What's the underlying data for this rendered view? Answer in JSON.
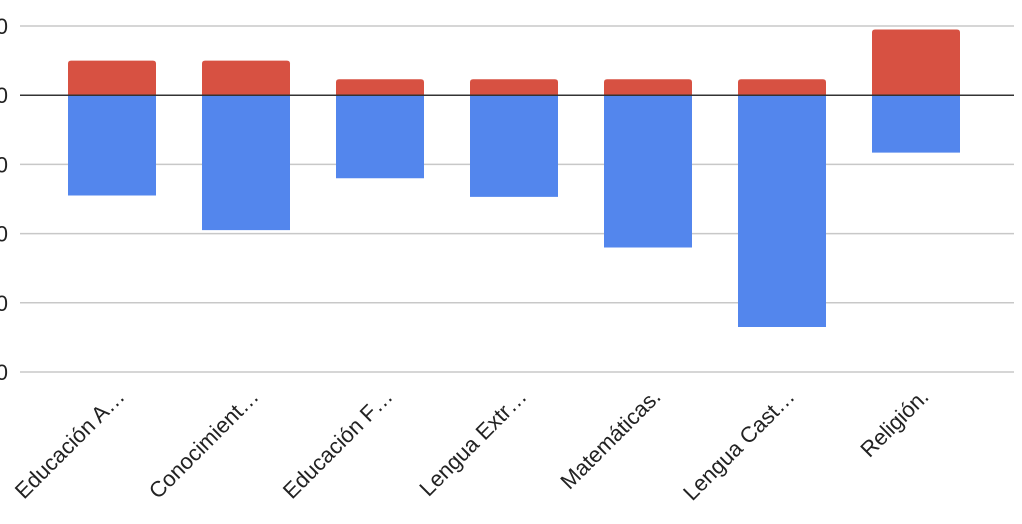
{
  "chart_data": {
    "type": "bar",
    "stacked": true,
    "categories": [
      "Educación A…",
      "Conocimient…",
      "Educación F…",
      "Lengua Extr…",
      "Matemáticas.",
      "Lengua Cast…",
      "Religión."
    ],
    "series": [
      {
        "values": [
          -1.45,
          -1.95,
          -1.2,
          -1.47,
          -2.2,
          -3.35,
          -0.83
        ],
        "color": "#5386ed"
      },
      {
        "values": [
          0.5,
          0.5,
          0.23,
          0.23,
          0.23,
          0.23,
          0.95
        ],
        "color": "#d75142"
      }
    ],
    "ytick_labels": [
      "0",
      "0",
      "0",
      "0",
      "0",
      "0"
    ],
    "ylim": [
      -4,
      1
    ],
    "grid": true,
    "zero_line_color": "#333333",
    "grid_color": "#c8c8c8"
  }
}
